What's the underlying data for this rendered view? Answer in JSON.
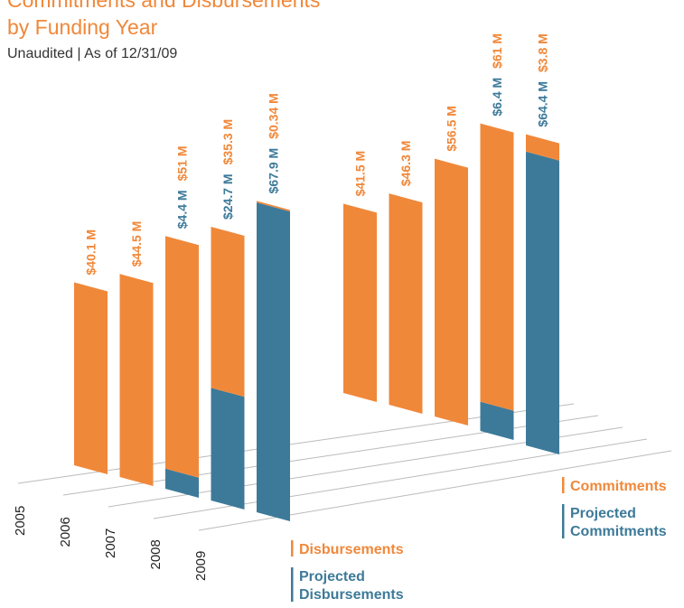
{
  "chart_data": {
    "type": "bar",
    "title": [
      "Commitments and Disbursements",
      "by Funding Year"
    ],
    "subtitle": "Unaudited | As of 12/31/09",
    "categories": [
      "2005",
      "2006",
      "2007",
      "2008",
      "2009"
    ],
    "series": [
      {
        "name": "Disbursements",
        "color": "#f0883a",
        "values": [
          40.1,
          44.5,
          51,
          35.3,
          0.34
        ],
        "value_labels": [
          "$40.1 M",
          "$44.5 M",
          "$51 M",
          "$35.3 M",
          "$0.34 M"
        ]
      },
      {
        "name": "Projected Disbursements",
        "color": "#3d7a99",
        "values": [
          null,
          null,
          4.4,
          24.7,
          67.9
        ],
        "value_labels": [
          null,
          null,
          "$4.4 M",
          "$24.7 M",
          "$67.9 M"
        ]
      },
      {
        "name": "Commitments",
        "color": "#f0883a",
        "values": [
          41.5,
          46.3,
          56.5,
          61,
          3.8
        ],
        "value_labels": [
          "$41.5 M",
          "$46.3 M",
          "$56.5 M",
          "$61 M",
          "$3.8 M"
        ]
      },
      {
        "name": "Projected Commitments",
        "color": "#3d7a99",
        "values": [
          null,
          null,
          null,
          6.4,
          64.4
        ],
        "value_labels": [
          null,
          null,
          null,
          "$6.4 M",
          "$64.4 M"
        ]
      }
    ]
  }
}
